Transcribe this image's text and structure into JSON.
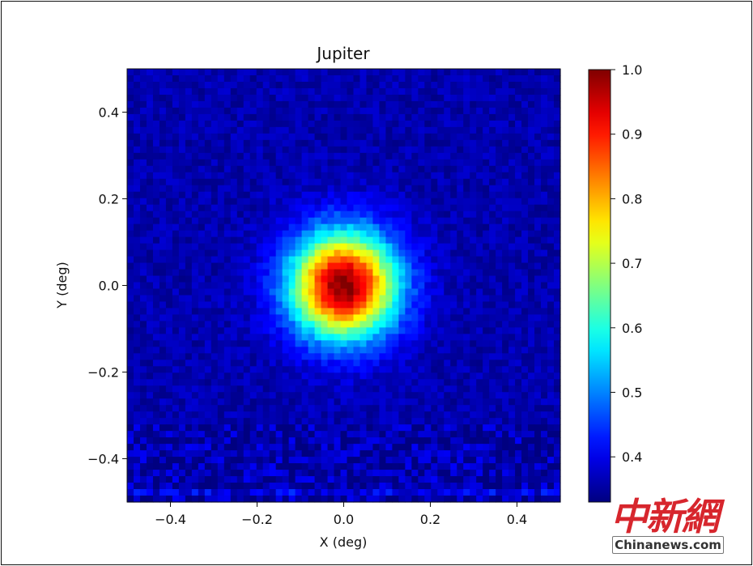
{
  "chart_data": {
    "type": "heatmap",
    "title": "Jupiter",
    "xlabel": "X (deg)",
    "ylabel": "Y (deg)",
    "xlim": [
      -0.5,
      0.5
    ],
    "ylim": [
      -0.5,
      0.5
    ],
    "x_ticks": [
      -0.4,
      -0.2,
      0.0,
      0.2,
      0.4
    ],
    "x_tick_labels": [
      "−0.4",
      "−0.2",
      "0.0",
      "0.2",
      "0.4"
    ],
    "y_ticks": [
      -0.4,
      -0.2,
      0.0,
      0.2,
      0.4
    ],
    "y_tick_labels": [
      "−0.4",
      "−0.2",
      "0.0",
      "0.2",
      "0.4"
    ],
    "colormap": "jet",
    "colorbar": {
      "range": [
        0.33,
        1.0
      ],
      "ticks": [
        0.4,
        0.5,
        0.6,
        0.7,
        0.8,
        0.9,
        1.0
      ],
      "tick_labels": [
        "0.4",
        "0.5",
        "0.6",
        "0.7",
        "0.8",
        "0.9",
        "1.0"
      ]
    },
    "source": {
      "center": [
        0.0,
        0.0
      ],
      "peak": 1.0,
      "background": 0.36,
      "fwhm_deg": 0.2
    },
    "grid": false
  },
  "watermark": {
    "chinese_text": "中新網",
    "site_text": "Chinanews.com"
  }
}
